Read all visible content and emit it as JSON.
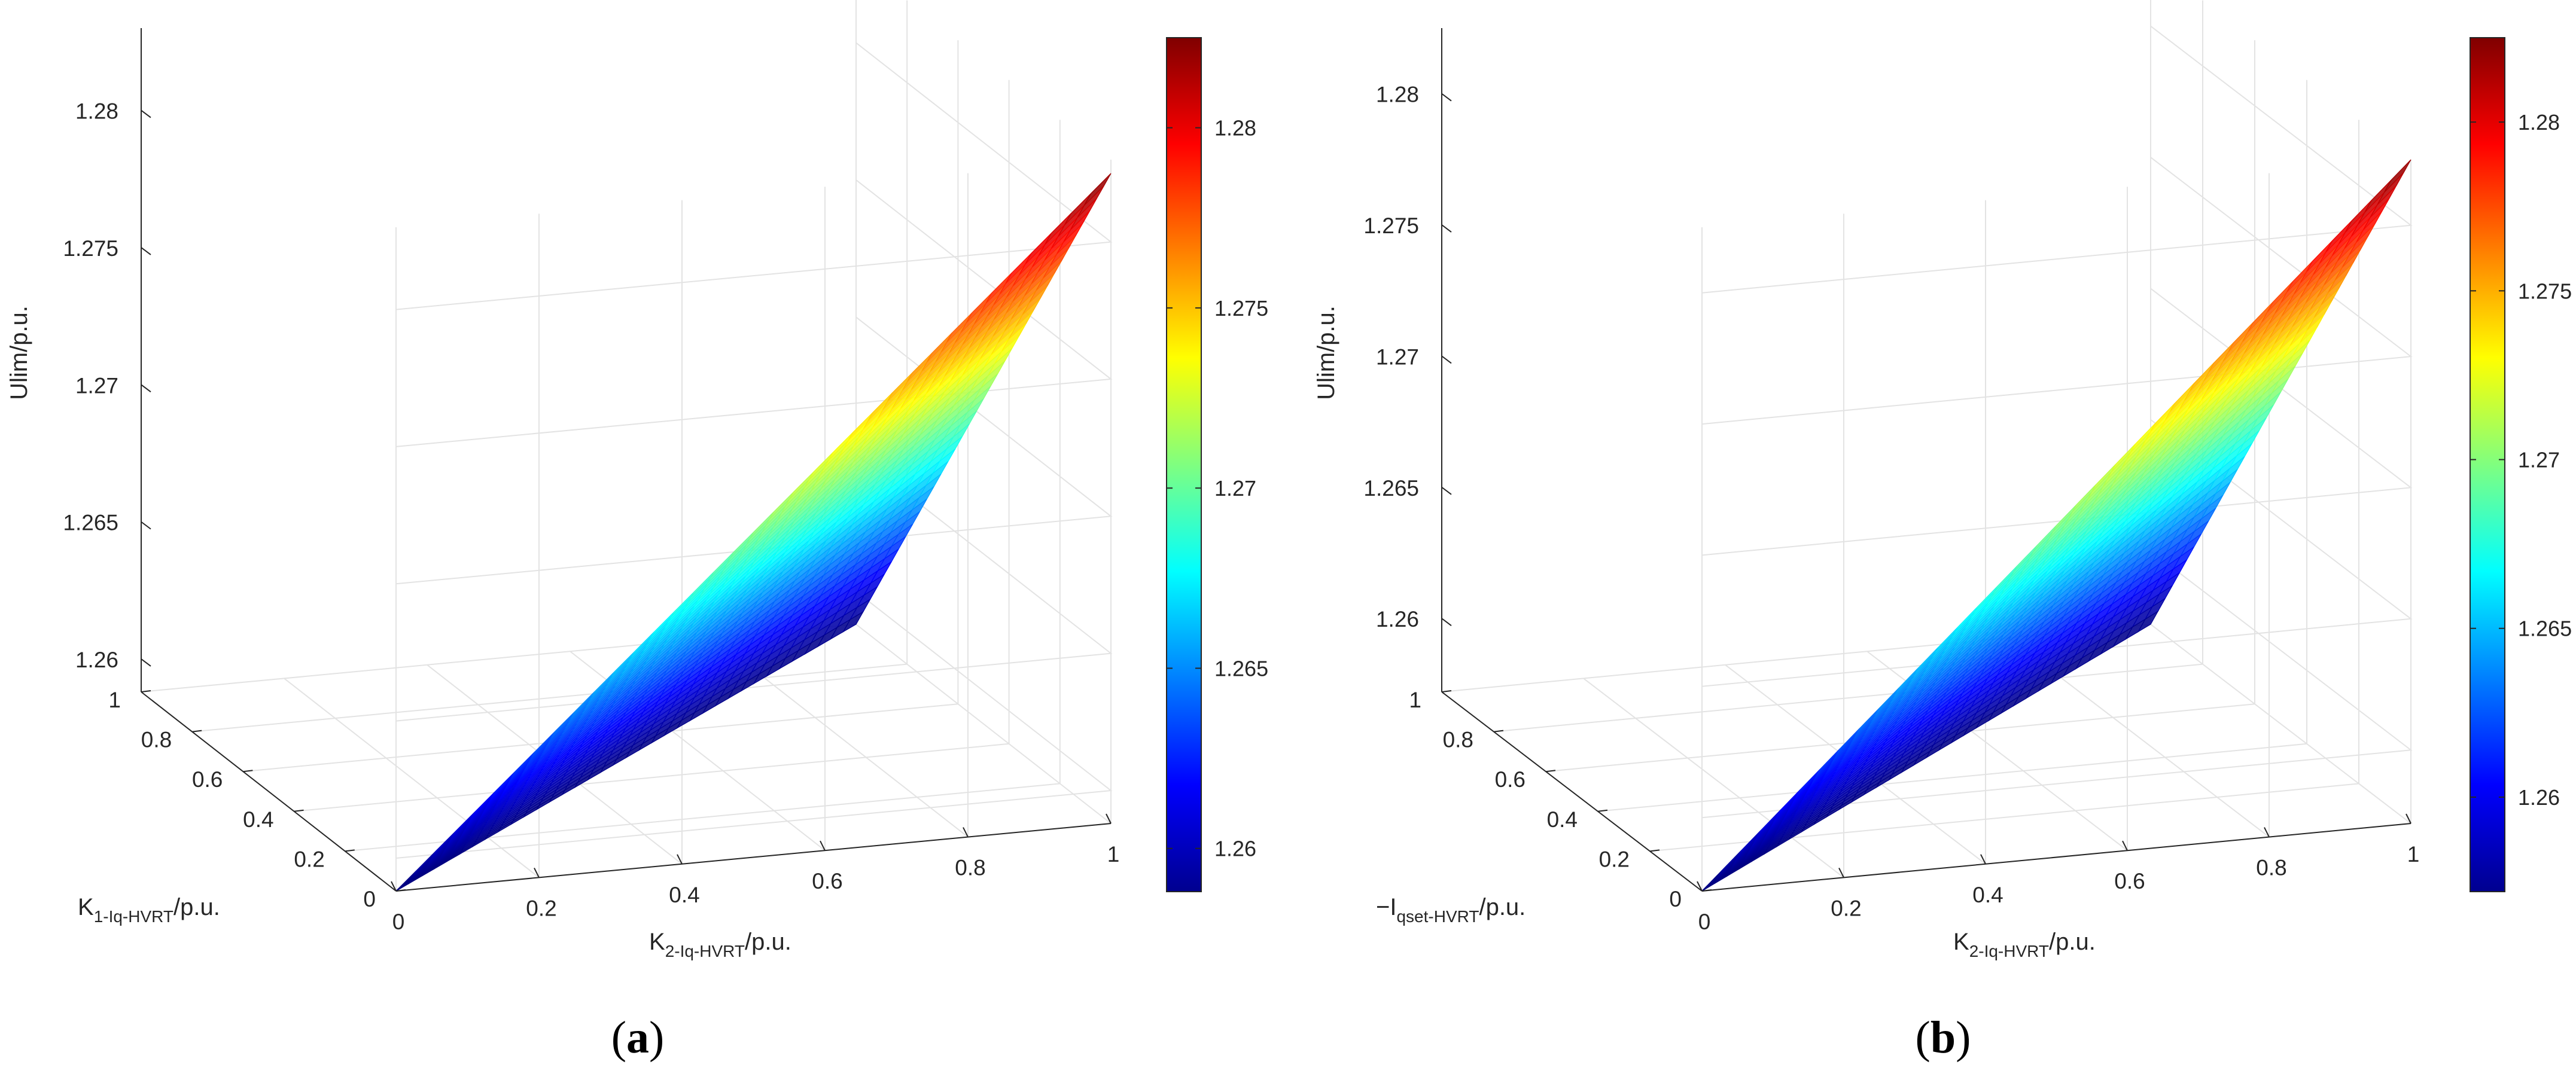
{
  "chart_data": [
    {
      "type": "surface",
      "panel_label": "a",
      "xlabel": "K",
      "xlabel_sub": "1-Iq-HVRT",
      "xlabel_suffix": "/p.u.",
      "ylabel": "K",
      "ylabel_sub": "2-Iq-HVRT",
      "ylabel_suffix": "/p.u.",
      "zlabel": "Ulim/p.u.",
      "x_ticks": [
        "0",
        "0.2",
        "0.4",
        "0.6",
        "0.8",
        "1"
      ],
      "y_ticks": [
        "0",
        "0.2",
        "0.4",
        "0.6",
        "0.8",
        "1"
      ],
      "z_ticks": [
        "1.26",
        "1.265",
        "1.27",
        "1.275",
        "1.28"
      ],
      "xlim": [
        0,
        1
      ],
      "ylim": [
        0,
        1
      ],
      "zlim": [
        1.258,
        1.283
      ],
      "surface_region": "K1 <= K2 (upper triangle)",
      "corner_values": [
        {
          "x": 0,
          "y": 0,
          "z": 1.2588
        },
        {
          "x": 0,
          "y": 1,
          "z": 1.2825
        },
        {
          "x": 1,
          "y": 1,
          "z": 1.2588
        }
      ],
      "colorbar": {
        "colormap": "jet",
        "range": [
          1.2588,
          1.2825
        ],
        "ticks": [
          "1.26",
          "1.265",
          "1.27",
          "1.275",
          "1.28"
        ]
      },
      "grid": true
    },
    {
      "type": "surface",
      "panel_label": "b",
      "xlabel": "−I",
      "xlabel_sub": "qset-HVRT",
      "xlabel_suffix": "/p.u.",
      "ylabel": "K",
      "ylabel_sub": "2-Iq-HVRT",
      "ylabel_suffix": "/p.u.",
      "zlabel": "Ulim/p.u.",
      "x_ticks": [
        "0",
        "0.2",
        "0.4",
        "0.6",
        "0.8",
        "1"
      ],
      "y_ticks": [
        "0",
        "0.2",
        "0.4",
        "0.6",
        "0.8",
        "1"
      ],
      "z_ticks": [
        "1.26",
        "1.265",
        "1.27",
        "1.275",
        "1.28"
      ],
      "xlim": [
        0,
        1
      ],
      "ylim": [
        0,
        1
      ],
      "zlim": [
        1.2565,
        1.2825
      ],
      "surface_region": "−Iqset <= K2 (upper triangle)",
      "corner_values": [
        {
          "x": 0,
          "y": 0,
          "z": 1.2572
        },
        {
          "x": 0,
          "y": 1,
          "z": 1.2825
        },
        {
          "x": 1,
          "y": 1,
          "z": 1.2572
        }
      ],
      "colorbar": {
        "colormap": "jet",
        "range": [
          1.2572,
          1.2825
        ],
        "ticks": [
          "1.26",
          "1.265",
          "1.27",
          "1.275",
          "1.28"
        ]
      },
      "grid": true
    }
  ]
}
